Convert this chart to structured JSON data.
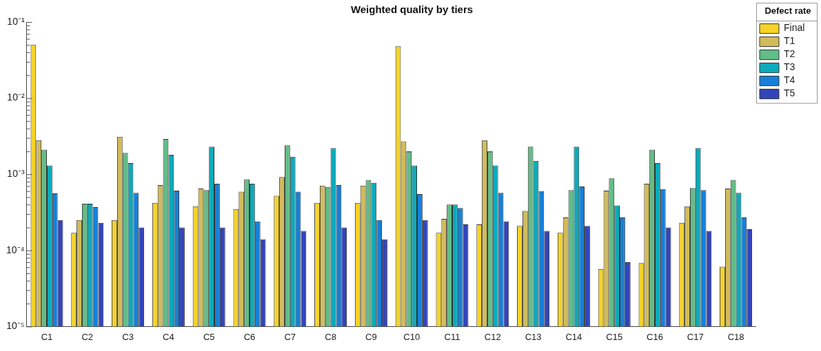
{
  "chart_data": {
    "type": "bar",
    "title": "Weighted quality by tiers",
    "legend_title": "Defect rate",
    "legend": "top right",
    "log": "y",
    "grid": false,
    "categories": [
      "C1",
      "C2",
      "C3",
      "C4",
      "C5",
      "C6",
      "C7",
      "C8",
      "C9",
      "C10",
      "C11",
      "C12",
      "C13",
      "C14",
      "C15",
      "C16",
      "C17",
      "C18"
    ],
    "ylim": [
      1e-05,
      0.1
    ],
    "yticks": [
      {
        "value": 1e-05,
        "label": "10⁻⁵"
      },
      {
        "value": 2e-05,
        "label": null
      },
      {
        "value": 3e-05,
        "label": null
      },
      {
        "value": 4e-05,
        "label": null
      },
      {
        "value": 5e-05,
        "label": null
      },
      {
        "value": 6e-05,
        "label": null
      },
      {
        "value": 7e-05,
        "label": null
      },
      {
        "value": 8e-05,
        "label": null
      },
      {
        "value": 9e-05,
        "label": null
      },
      {
        "value": 0.0001,
        "label": "10⁻⁴"
      },
      {
        "value": 0.0002,
        "label": null
      },
      {
        "value": 0.0003,
        "label": null
      },
      {
        "value": 0.0004,
        "label": null
      },
      {
        "value": 0.0005,
        "label": null
      },
      {
        "value": 0.0006,
        "label": null
      },
      {
        "value": 0.0007,
        "label": null
      },
      {
        "value": 0.0008,
        "label": null
      },
      {
        "value": 0.0009,
        "label": null
      },
      {
        "value": 0.001,
        "label": "10⁻³"
      },
      {
        "value": 0.002,
        "label": null
      },
      {
        "value": 0.003,
        "label": null
      },
      {
        "value": 0.004,
        "label": null
      },
      {
        "value": 0.005,
        "label": null
      },
      {
        "value": 0.006,
        "label": null
      },
      {
        "value": 0.007,
        "label": null
      },
      {
        "value": 0.008,
        "label": null
      },
      {
        "value": 0.009,
        "label": null
      },
      {
        "value": 0.01,
        "label": "10⁻²"
      },
      {
        "value": 0.02,
        "label": null
      },
      {
        "value": 0.03,
        "label": null
      },
      {
        "value": 0.04,
        "label": null
      },
      {
        "value": 0.05,
        "label": null
      },
      {
        "value": 0.06,
        "label": null
      },
      {
        "value": 0.07,
        "label": null
      },
      {
        "value": 0.08,
        "label": null
      },
      {
        "value": 0.09,
        "label": null
      },
      {
        "value": 0.1,
        "label": "10⁻¹"
      }
    ],
    "series": [
      {
        "name": "Final",
        "color": "#f5d327",
        "values": [
          0.05,
          0.00017,
          0.00025,
          0.00042,
          0.00038,
          0.00035,
          0.00052,
          0.00042,
          0.00042,
          0.048,
          0.00017,
          0.00022,
          0.00021,
          0.00017,
          5.7e-05,
          6.8e-05,
          0.00023,
          6.1e-05
        ]
      },
      {
        "name": "T1",
        "color": "#d2bb5a",
        "values": [
          0.0028,
          0.00025,
          0.0031,
          0.00072,
          0.00065,
          0.00059,
          0.00092,
          0.00071,
          0.00071,
          0.0027,
          0.00026,
          0.0028,
          0.00033,
          0.00027,
          0.00061,
          0.00075,
          0.00038,
          0.00065
        ]
      },
      {
        "name": "T2",
        "color": "#62bd86",
        "values": [
          0.0021,
          0.00041,
          0.0019,
          0.0029,
          0.00062,
          0.00086,
          0.0024,
          0.00068,
          0.00084,
          0.002,
          0.0004,
          0.002,
          0.0023,
          0.00062,
          0.00088,
          0.0021,
          0.00066,
          0.00084
        ]
      },
      {
        "name": "T3",
        "color": "#0aabbb",
        "values": [
          0.0013,
          0.00041,
          0.0014,
          0.0018,
          0.0023,
          0.00075,
          0.0017,
          0.0022,
          0.00077,
          0.0013,
          0.0004,
          0.0013,
          0.0015,
          0.0023,
          0.00039,
          0.0014,
          0.0022,
          0.00057
        ]
      },
      {
        "name": "T4",
        "color": "#1680d8",
        "values": [
          0.00056,
          0.00037,
          0.00057,
          0.00061,
          0.00075,
          0.00024,
          0.00059,
          0.00072,
          0.00025,
          0.00055,
          0.00036,
          0.00057,
          0.0006,
          0.00069,
          0.00027,
          0.00064,
          0.00062,
          0.00027
        ]
      },
      {
        "name": "T5",
        "color": "#3344bb",
        "values": [
          0.00025,
          0.00023,
          0.0002,
          0.0002,
          0.0002,
          0.00014,
          0.00018,
          0.0002,
          0.00014,
          0.00025,
          0.00022,
          0.00024,
          0.00018,
          0.00021,
          7e-05,
          0.0002,
          0.00018,
          0.00019
        ]
      }
    ]
  }
}
